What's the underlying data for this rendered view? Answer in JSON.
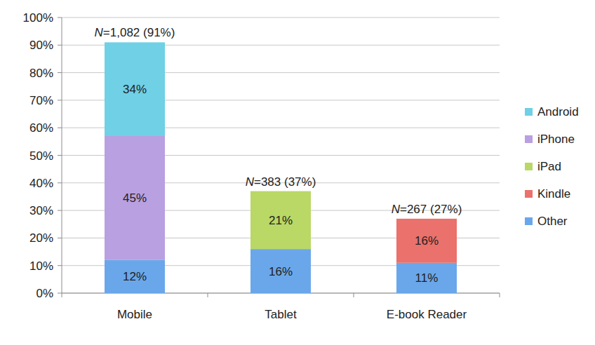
{
  "chart_data": {
    "type": "bar",
    "stacked": true,
    "categories": [
      "Mobile",
      "Tablet",
      "E-book Reader"
    ],
    "annotations": [
      "N=1,082 (91%)",
      "N=383 (37%)",
      "N=267 (27%)"
    ],
    "series": [
      {
        "name": "Android",
        "color": "#6fd0e6",
        "values": [
          34,
          null,
          null
        ],
        "value_labels": [
          "34%",
          null,
          null
        ]
      },
      {
        "name": "iPhone",
        "color": "#b9a0e0",
        "values": [
          45,
          null,
          null
        ],
        "value_labels": [
          "45%",
          null,
          null
        ]
      },
      {
        "name": "iPad",
        "color": "#b9d866",
        "values": [
          null,
          21,
          null
        ],
        "value_labels": [
          null,
          "21%",
          null
        ]
      },
      {
        "name": "Kindle",
        "color": "#ea716c",
        "values": [
          null,
          null,
          16
        ],
        "value_labels": [
          null,
          null,
          "16%"
        ]
      },
      {
        "name": "Other",
        "color": "#6aa7ea",
        "values": [
          12,
          16,
          11
        ],
        "value_labels": [
          "12%",
          "16%",
          "11%"
        ]
      }
    ],
    "ylim": [
      0,
      100
    ],
    "yticks": [
      {
        "value": 0,
        "label": "0%"
      },
      {
        "value": 10,
        "label": "10%"
      },
      {
        "value": 20,
        "label": "20%"
      },
      {
        "value": 30,
        "label": "30%"
      },
      {
        "value": 40,
        "label": "40%"
      },
      {
        "value": 50,
        "label": "50%"
      },
      {
        "value": 60,
        "label": "60%"
      },
      {
        "value": 70,
        "label": "70%"
      },
      {
        "value": 80,
        "label": "80%"
      },
      {
        "value": 90,
        "label": "90%"
      },
      {
        "value": 100,
        "label": "100%"
      }
    ],
    "grid": true,
    "legend": "right",
    "data_labels": true
  }
}
